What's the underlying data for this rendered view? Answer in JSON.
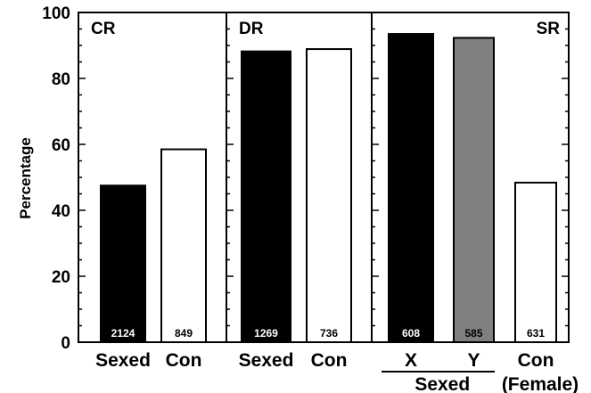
{
  "chart_data": {
    "type": "bar",
    "ylabel": "Percentage",
    "ylim": [
      0,
      100
    ],
    "yticks": [
      "0",
      "20",
      "40",
      "60",
      "80",
      "100"
    ],
    "panels": [
      {
        "label": "CR",
        "bars": [
          {
            "category": "Sexed",
            "value": 47.5,
            "n": "2124",
            "fill": "#000000",
            "n_color": "#ffffff"
          },
          {
            "category": "Con",
            "value": 58.5,
            "n": "849",
            "fill": "#ffffff",
            "n_color": "#000000"
          }
        ]
      },
      {
        "label": "DR",
        "bars": [
          {
            "category": "Sexed",
            "value": 88.2,
            "n": "1269",
            "fill": "#000000",
            "n_color": "#ffffff"
          },
          {
            "category": "Con",
            "value": 88.9,
            "n": "736",
            "fill": "#ffffff",
            "n_color": "#000000"
          }
        ]
      },
      {
        "label": "SR",
        "bars": [
          {
            "category": "X",
            "value": 93.5,
            "n": "608",
            "fill": "#000000",
            "n_color": "#ffffff"
          },
          {
            "category": "Y",
            "value": 92.3,
            "n": "585",
            "fill": "#808080",
            "n_color": "#000000"
          },
          {
            "category": "Con",
            "value": 48.4,
            "n": "631",
            "fill": "#ffffff",
            "n_color": "#000000"
          }
        ],
        "group_label": "Sexed",
        "extra_label": "(Female)"
      }
    ]
  }
}
